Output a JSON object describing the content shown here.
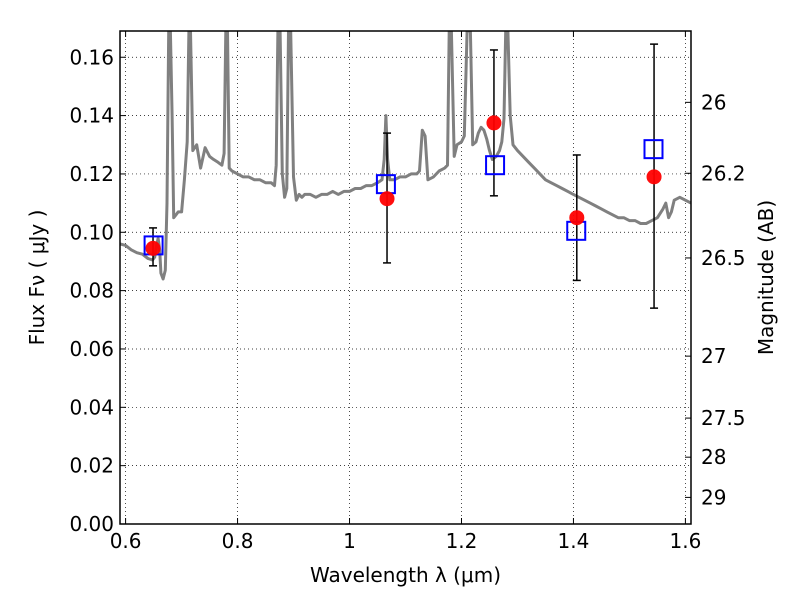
{
  "chart_data": {
    "type": "scatter",
    "xlabel": "Wavelength  λ (μm)",
    "ylabel": "Flux  Fν  ( μJy )",
    "y2label": "Magnitude (AB)",
    "xlim": [
      0.59,
      1.61
    ],
    "ylim": [
      0.0,
      0.169
    ],
    "grid": true,
    "x_ticks": [
      0.6,
      0.8,
      1.0,
      1.2,
      1.4,
      1.6
    ],
    "x_tick_labels": [
      "0.6",
      "0.8",
      "1",
      "1.2",
      "1.4",
      "1.6"
    ],
    "y_ticks": [
      0.0,
      0.02,
      0.04,
      0.06,
      0.08,
      0.1,
      0.12,
      0.14,
      0.16
    ],
    "y_tick_labels": [
      "0.00",
      "0.02",
      "0.04",
      "0.06",
      "0.08",
      "0.10",
      "0.12",
      "0.14",
      "0.16"
    ],
    "mag_ticks": [
      {
        "mag": 26,
        "label": "26"
      },
      {
        "mag": 26.2,
        "label": "26.2"
      },
      {
        "mag": 26.5,
        "label": "26.5"
      },
      {
        "mag": 27,
        "label": "27"
      },
      {
        "mag": 27.5,
        "label": "27.5"
      },
      {
        "mag": 28,
        "label": "28"
      },
      {
        "mag": 29,
        "label": "29"
      }
    ],
    "series": [
      {
        "marker": "filled-circle",
        "color": "#ff0000",
        "points": [
          {
            "x": 0.649,
            "y": 0.0945,
            "yerr_low": 0.0885,
            "yerr_high": 0.1015
          },
          {
            "x": 1.067,
            "y": 0.1115,
            "yerr_low": 0.0895,
            "yerr_high": 0.134
          },
          {
            "x": 1.258,
            "y": 0.1375,
            "yerr_low": 0.1125,
            "yerr_high": 0.1625
          },
          {
            "x": 1.406,
            "y": 0.105,
            "yerr_low": 0.0835,
            "yerr_high": 0.1265
          },
          {
            "x": 1.544,
            "y": 0.119,
            "yerr_low": 0.074,
            "yerr_high": 0.1645
          }
        ]
      },
      {
        "marker": "open-square",
        "color": "#0000ff",
        "points": [
          {
            "x": 0.65,
            "y": 0.0955
          },
          {
            "x": 1.065,
            "y": 0.1165
          },
          {
            "x": 1.26,
            "y": 0.123
          },
          {
            "x": 1.405,
            "y": 0.1005
          },
          {
            "x": 1.543,
            "y": 0.1285
          }
        ]
      },
      {
        "type": "line",
        "color": "#808080",
        "points": [
          [
            0.59,
            0.096
          ],
          [
            0.6,
            0.0955
          ],
          [
            0.61,
            0.094
          ],
          [
            0.62,
            0.093
          ],
          [
            0.63,
            0.0925
          ],
          [
            0.64,
            0.091
          ],
          [
            0.648,
            0.0905
          ],
          [
            0.652,
            0.0915
          ],
          [
            0.655,
            0.095
          ],
          [
            0.658,
            0.098
          ],
          [
            0.661,
            0.094
          ],
          [
            0.663,
            0.086
          ],
          [
            0.667,
            0.084
          ],
          [
            0.671,
            0.087
          ],
          [
            0.674,
            0.11
          ],
          [
            0.677,
            0.169
          ],
          [
            0.68,
            0.169
          ],
          [
            0.683,
            0.14
          ],
          [
            0.686,
            0.105
          ],
          [
            0.69,
            0.106
          ],
          [
            0.694,
            0.107
          ],
          [
            0.7,
            0.107
          ],
          [
            0.705,
            0.118
          ],
          [
            0.71,
            0.131
          ],
          [
            0.713,
            0.169
          ],
          [
            0.716,
            0.169
          ],
          [
            0.72,
            0.128
          ],
          [
            0.727,
            0.13
          ],
          [
            0.734,
            0.122
          ],
          [
            0.742,
            0.129
          ],
          [
            0.75,
            0.126
          ],
          [
            0.757,
            0.125
          ],
          [
            0.765,
            0.124
          ],
          [
            0.772,
            0.123
          ],
          [
            0.776,
            0.127
          ],
          [
            0.779,
            0.169
          ],
          [
            0.782,
            0.169
          ],
          [
            0.785,
            0.122
          ],
          [
            0.79,
            0.121
          ],
          [
            0.8,
            0.12
          ],
          [
            0.81,
            0.119
          ],
          [
            0.82,
            0.119
          ],
          [
            0.83,
            0.118
          ],
          [
            0.84,
            0.118
          ],
          [
            0.85,
            0.117
          ],
          [
            0.86,
            0.117
          ],
          [
            0.866,
            0.116
          ],
          [
            0.869,
            0.123
          ],
          [
            0.872,
            0.169
          ],
          [
            0.876,
            0.169
          ],
          [
            0.88,
            0.12
          ],
          [
            0.884,
            0.112
          ],
          [
            0.888,
            0.115
          ],
          [
            0.891,
            0.169
          ],
          [
            0.895,
            0.169
          ],
          [
            0.9,
            0.119
          ],
          [
            0.905,
            0.111
          ],
          [
            0.91,
            0.113
          ],
          [
            0.915,
            0.112
          ],
          [
            0.92,
            0.113
          ],
          [
            0.93,
            0.113
          ],
          [
            0.94,
            0.112
          ],
          [
            0.95,
            0.113
          ],
          [
            0.96,
            0.113
          ],
          [
            0.97,
            0.114
          ],
          [
            0.98,
            0.113
          ],
          [
            0.99,
            0.114
          ],
          [
            1.0,
            0.114
          ],
          [
            1.01,
            0.115
          ],
          [
            1.02,
            0.115
          ],
          [
            1.03,
            0.116
          ],
          [
            1.04,
            0.116
          ],
          [
            1.05,
            0.117
          ],
          [
            1.058,
            0.118
          ],
          [
            1.062,
            0.125
          ],
          [
            1.065,
            0.14
          ],
          [
            1.068,
            0.125
          ],
          [
            1.072,
            0.118
          ],
          [
            1.08,
            0.118
          ],
          [
            1.09,
            0.119
          ],
          [
            1.1,
            0.119
          ],
          [
            1.11,
            0.12
          ],
          [
            1.12,
            0.12
          ],
          [
            1.125,
            0.121
          ],
          [
            1.13,
            0.135
          ],
          [
            1.135,
            0.133
          ],
          [
            1.14,
            0.118
          ],
          [
            1.15,
            0.119
          ],
          [
            1.16,
            0.121
          ],
          [
            1.17,
            0.122
          ],
          [
            1.175,
            0.123
          ],
          [
            1.178,
            0.169
          ],
          [
            1.182,
            0.169
          ],
          [
            1.187,
            0.126
          ],
          [
            1.192,
            0.13
          ],
          [
            1.2,
            0.131
          ],
          [
            1.205,
            0.133
          ],
          [
            1.21,
            0.169
          ],
          [
            1.216,
            0.169
          ],
          [
            1.22,
            0.13
          ],
          [
            1.226,
            0.131
          ],
          [
            1.23,
            0.134
          ],
          [
            1.235,
            0.136
          ],
          [
            1.24,
            0.135
          ],
          [
            1.245,
            0.132
          ],
          [
            1.25,
            0.128
          ],
          [
            1.255,
            0.125
          ],
          [
            1.262,
            0.126
          ],
          [
            1.268,
            0.128
          ],
          [
            1.272,
            0.131
          ],
          [
            1.276,
            0.139
          ],
          [
            1.279,
            0.169
          ],
          [
            1.283,
            0.169
          ],
          [
            1.287,
            0.14
          ],
          [
            1.292,
            0.13
          ],
          [
            1.3,
            0.128
          ],
          [
            1.31,
            0.126
          ],
          [
            1.32,
            0.124
          ],
          [
            1.33,
            0.122
          ],
          [
            1.34,
            0.12
          ],
          [
            1.35,
            0.118
          ],
          [
            1.36,
            0.117
          ],
          [
            1.37,
            0.116
          ],
          [
            1.38,
            0.115
          ],
          [
            1.39,
            0.114
          ],
          [
            1.4,
            0.113
          ],
          [
            1.41,
            0.112
          ],
          [
            1.42,
            0.111
          ],
          [
            1.43,
            0.11
          ],
          [
            1.44,
            0.109
          ],
          [
            1.45,
            0.108
          ],
          [
            1.46,
            0.107
          ],
          [
            1.47,
            0.106
          ],
          [
            1.48,
            0.105
          ],
          [
            1.49,
            0.105
          ],
          [
            1.5,
            0.104
          ],
          [
            1.51,
            0.104
          ],
          [
            1.52,
            0.103
          ],
          [
            1.53,
            0.103
          ],
          [
            1.54,
            0.104
          ],
          [
            1.55,
            0.105
          ],
          [
            1.56,
            0.108
          ],
          [
            1.565,
            0.11
          ],
          [
            1.57,
            0.105
          ],
          [
            1.575,
            0.107
          ],
          [
            1.58,
            0.111
          ],
          [
            1.59,
            0.112
          ],
          [
            1.6,
            0.111
          ],
          [
            1.61,
            0.11
          ]
        ]
      }
    ]
  }
}
